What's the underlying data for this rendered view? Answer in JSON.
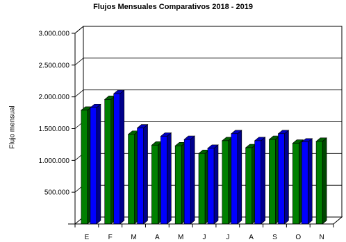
{
  "chart_data": {
    "type": "bar",
    "title": "Flujos Mensuales Comparativos 2018 - 2019",
    "xlabel": "",
    "ylabel": "Flujo mensual",
    "categories": [
      "E",
      "F",
      "M",
      "A",
      "M",
      "J",
      "J",
      "A",
      "S",
      "O",
      "N"
    ],
    "series": [
      {
        "color": "#008000",
        "values": [
          1790000,
          1960000,
          1410000,
          1240000,
          1230000,
          1110000,
          1310000,
          1200000,
          1330000,
          1270000,
          1300000
        ]
      },
      {
        "color": "#0000ff",
        "values": [
          1830000,
          2050000,
          1510000,
          1380000,
          1330000,
          1190000,
          1420000,
          1310000,
          1420000,
          1290000,
          null
        ]
      }
    ],
    "yticks": [
      "500.000",
      "1.000.000",
      "1.500.000",
      "2.000.000",
      "2.500.000",
      "3.000.000"
    ],
    "ytick_values": [
      500000,
      1000000,
      1500000,
      2000000,
      2500000,
      3000000
    ],
    "ylim": [
      0,
      3000000
    ],
    "grid": true,
    "legend": "none"
  }
}
